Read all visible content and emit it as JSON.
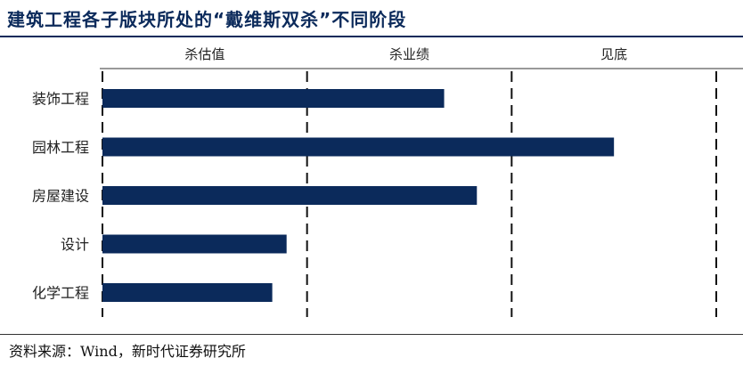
{
  "title": "建筑工程各子版块所处的“戴维斯双杀”不同阶段",
  "source": "资料来源：Wind，新时代证券研究所",
  "chart_data": {
    "type": "bar",
    "orientation": "horizontal",
    "categories": [
      "装饰工程",
      "园林工程",
      "房屋建设",
      "设计",
      "化学工程"
    ],
    "values": [
      1.67,
      2.5,
      1.83,
      0.9,
      0.83
    ],
    "stages": [
      "杀估值",
      "杀业绩",
      "见底"
    ],
    "xlim": [
      0,
      3
    ],
    "bar_color": "#0b2a5b",
    "grid": "dashed vertical stage dividers"
  }
}
